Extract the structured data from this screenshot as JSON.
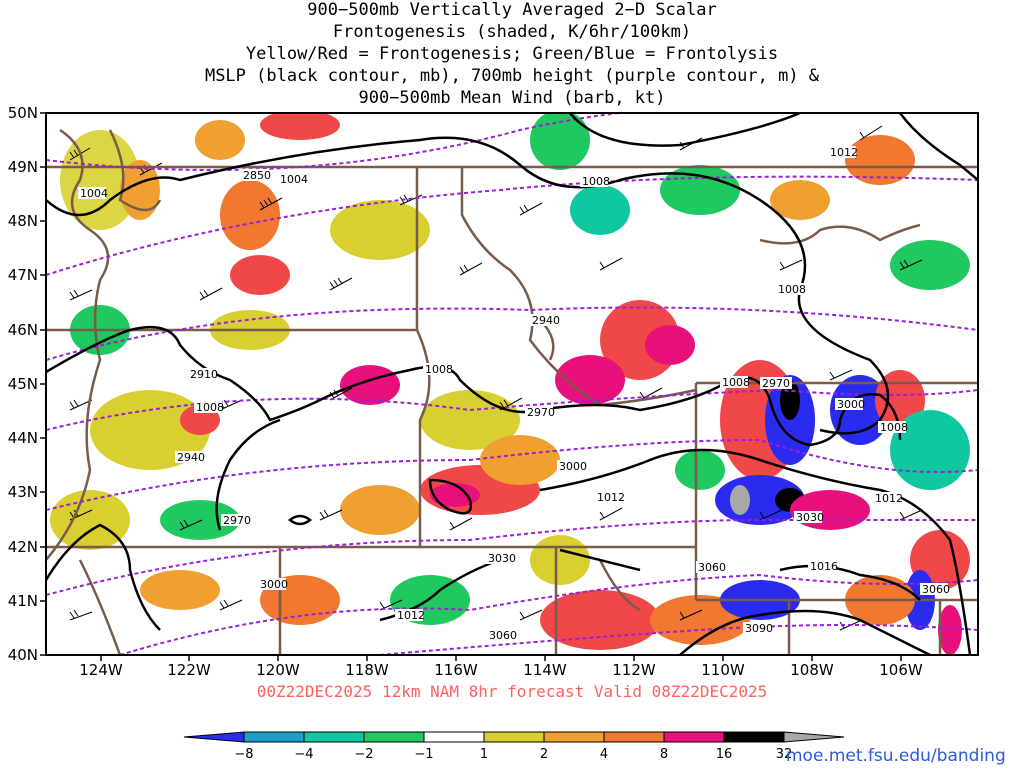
{
  "title": {
    "line1": "900−500mb Vertically Averaged 2−D Scalar",
    "line2": "Frontogenesis (shaded, K/6hr/100km)",
    "line3": "Yellow/Red = Frontogenesis;  Green/Blue = Frontolysis",
    "line4": "MSLP (black contour, mb), 700mb height (purple contour, m) &",
    "line5": "900−500mb Mean Wind (barb, kt)"
  },
  "map": {
    "lat_labels": [
      "50N",
      "49N",
      "48N",
      "47N",
      "46N",
      "45N",
      "44N",
      "43N",
      "42N",
      "41N",
      "40N"
    ],
    "lon_labels": [
      "124W",
      "122W",
      "120W",
      "118W",
      "116W",
      "114W",
      "112W",
      "110W",
      "108W",
      "106W"
    ],
    "mslp_labels": [
      "1004",
      "1004",
      "1008",
      "1012",
      "1008",
      "1008",
      "1008",
      "1008",
      "1008",
      "1012",
      "1012",
      "1012",
      "1016",
      "1012"
    ],
    "height_labels": [
      "2850",
      "2940",
      "2910",
      "2940",
      "2970",
      "2970",
      "2970",
      "3000",
      "3000",
      "3030",
      "3030",
      "3060",
      "3060",
      "3060",
      "3090",
      "3000"
    ],
    "colors": {
      "mslp_contour": "#000000",
      "height_contour": "#9a1fd6",
      "state_border": "#7a5a48"
    }
  },
  "valid_text": "00Z22DEC2025 12km NAM 8hr forecast Valid 08Z22DEC2025",
  "colorbar": {
    "labels": [
      "−8",
      "−4",
      "−2",
      "−1",
      "1",
      "2",
      "4",
      "8",
      "16",
      "32"
    ],
    "colors": [
      "#2b2bf0",
      "#1aa0c8",
      "#10c8a0",
      "#20c860",
      "#10e010",
      "#ffffff",
      "#d8d030",
      "#f0a030",
      "#f07830",
      "#f04848",
      "#e8107a",
      "#000000",
      "#a8a8a8"
    ]
  },
  "credit": "moe.met.fsu.edu/banding"
}
